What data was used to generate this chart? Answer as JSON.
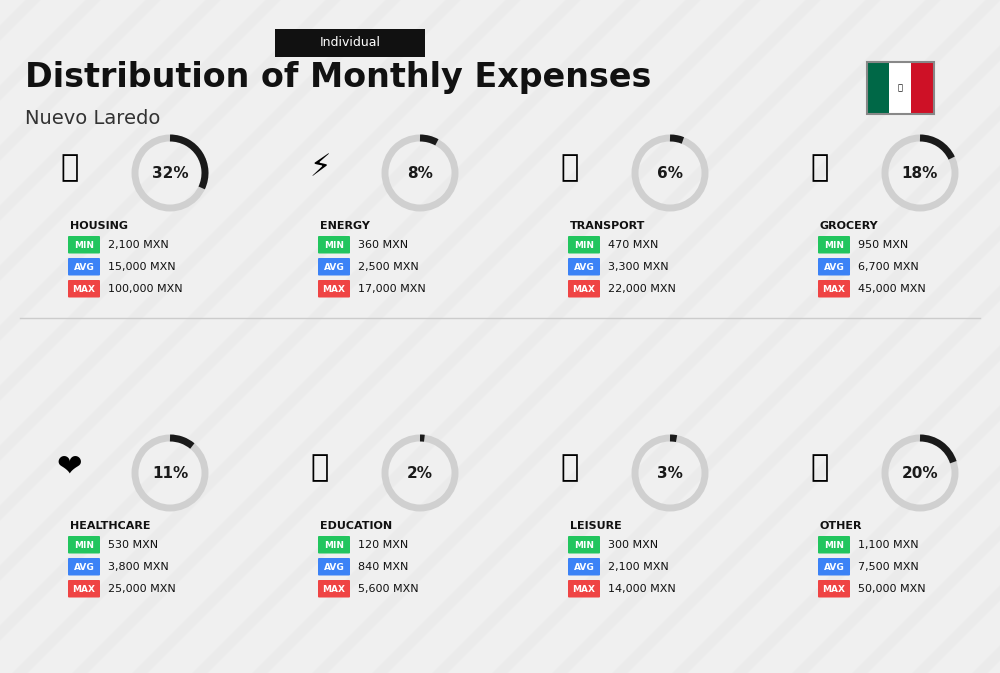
{
  "title": "Distribution of Monthly Expenses",
  "subtitle": "Individual",
  "city": "Nuevo Laredo",
  "bg_color": "#f0f0f0",
  "categories": [
    {
      "name": "HOUSING",
      "pct": 32,
      "min": "2,100 MXN",
      "avg": "15,000 MXN",
      "max": "100,000 MXN",
      "emoji": "🏢",
      "col": 0,
      "row": 0
    },
    {
      "name": "ENERGY",
      "pct": 8,
      "min": "360 MXN",
      "avg": "2,500 MXN",
      "max": "17,000 MXN",
      "emoji": "⚡",
      "col": 1,
      "row": 0
    },
    {
      "name": "TRANSPORT",
      "pct": 6,
      "min": "470 MXN",
      "avg": "3,300 MXN",
      "max": "22,000 MXN",
      "emoji": "🚌",
      "col": 2,
      "row": 0
    },
    {
      "name": "GROCERY",
      "pct": 18,
      "min": "950 MXN",
      "avg": "6,700 MXN",
      "max": "45,000 MXN",
      "emoji": "🛒",
      "col": 3,
      "row": 0
    },
    {
      "name": "HEALTHCARE",
      "pct": 11,
      "min": "530 MXN",
      "avg": "3,800 MXN",
      "max": "25,000 MXN",
      "emoji": "❤️",
      "col": 0,
      "row": 1
    },
    {
      "name": "EDUCATION",
      "pct": 2,
      "min": "120 MXN",
      "avg": "840 MXN",
      "max": "5,600 MXN",
      "emoji": "🎓",
      "col": 1,
      "row": 1
    },
    {
      "name": "LEISURE",
      "pct": 3,
      "min": "300 MXN",
      "avg": "2,100 MXN",
      "max": "14,000 MXN",
      "emoji": "🛍️",
      "col": 2,
      "row": 1
    },
    {
      "name": "OTHER",
      "pct": 20,
      "min": "1,100 MXN",
      "avg": "7,500 MXN",
      "max": "50,000 MXN",
      "emoji": "💰",
      "col": 3,
      "row": 1
    }
  ],
  "min_color": "#22c55e",
  "avg_color": "#3b82f6",
  "max_color": "#ef4444",
  "label_text_color": "#ffffff",
  "arc_dark_color": "#1a1a1a",
  "arc_light_color": "#d0d0d0",
  "title_color": "#111111",
  "city_color": "#333333"
}
